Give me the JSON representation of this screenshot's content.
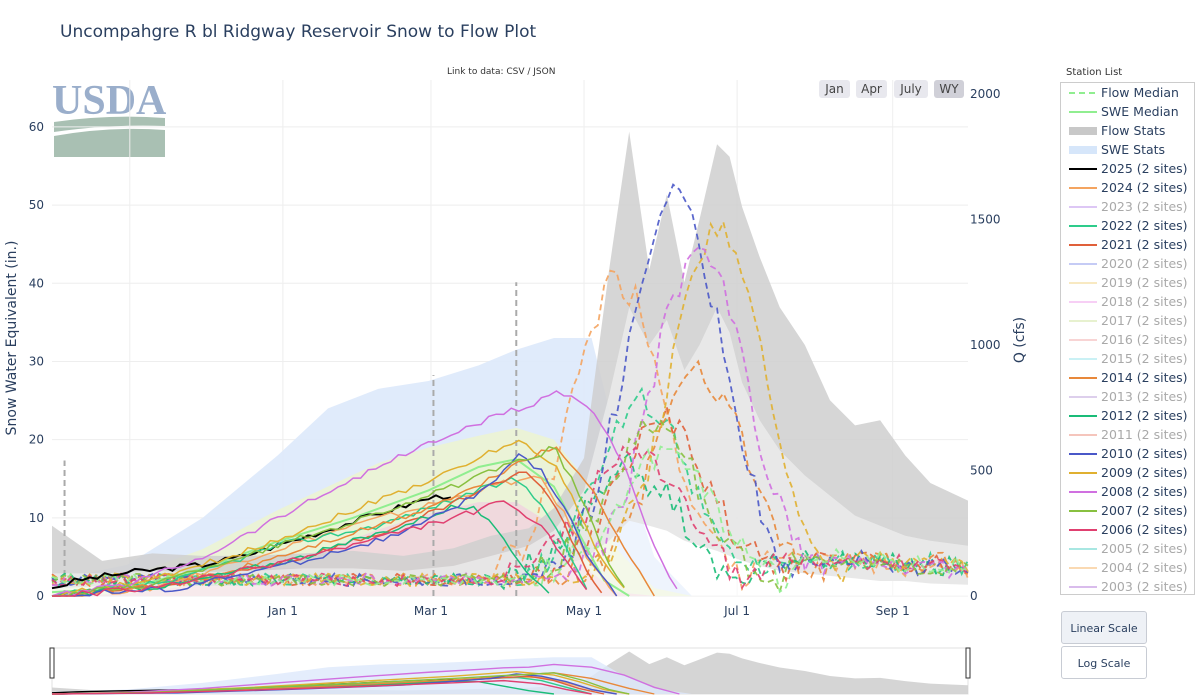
{
  "page": {
    "title": "Uncompahgre R bl Ridgway Reservoir Snow to Flow Plot"
  },
  "links": {
    "data_link": "Link to data: CSV / JSON"
  },
  "range_buttons": [
    {
      "label": "Jan",
      "active": false
    },
    {
      "label": "Apr",
      "active": false
    },
    {
      "label": "July",
      "active": false
    },
    {
      "label": "WY",
      "active": true
    }
  ],
  "logo": {
    "text": "USDA",
    "color": "#9aaecb",
    "field_color": "#a9c0b3"
  },
  "station_list_label": "Station List",
  "scale_buttons": [
    {
      "label": "Linear Scale",
      "active": true
    },
    {
      "label": "Log Scale",
      "active": false
    }
  ],
  "legend": [
    {
      "label": "Flow Median",
      "style": "dash",
      "color": "#90ee90",
      "visible": true
    },
    {
      "label": "SWE Median",
      "style": "line",
      "color": "#90ee90",
      "visible": true
    },
    {
      "label": "Flow Stats",
      "style": "band",
      "color": "#c8c8c8",
      "visible": true
    },
    {
      "label": "SWE Stats",
      "style": "band",
      "color": "#d6e6fa",
      "visible": true
    },
    {
      "label": "2025 (2 sites)",
      "style": "line",
      "color": "#000000",
      "visible": true
    },
    {
      "label": "2024 (2 sites)",
      "style": "line",
      "color": "#f4a460",
      "visible": true
    },
    {
      "label": "2023 (2 sites)",
      "style": "line",
      "color": "#c8a2f0",
      "visible": false
    },
    {
      "label": "2022 (2 sites)",
      "style": "line",
      "color": "#2ecc8b",
      "visible": true
    },
    {
      "label": "2021 (2 sites)",
      "style": "line",
      "color": "#e0603a",
      "visible": true
    },
    {
      "label": "2020 (2 sites)",
      "style": "line",
      "color": "#a0aaf0",
      "visible": false
    },
    {
      "label": "2019 (2 sites)",
      "style": "line",
      "color": "#f5dc9a",
      "visible": false
    },
    {
      "label": "2018 (2 sites)",
      "style": "line",
      "color": "#f3b0f0",
      "visible": false
    },
    {
      "label": "2017 (2 sites)",
      "style": "line",
      "color": "#d8e8b0",
      "visible": false
    },
    {
      "label": "2016 (2 sites)",
      "style": "line",
      "color": "#f4b8b8",
      "visible": false
    },
    {
      "label": "2015 (2 sites)",
      "style": "line",
      "color": "#a8e8f0",
      "visible": false
    },
    {
      "label": "2014 (2 sites)",
      "style": "line",
      "color": "#e8883a",
      "visible": true
    },
    {
      "label": "2013 (2 sites)",
      "style": "line",
      "color": "#c8b0e0",
      "visible": false
    },
    {
      "label": "2012 (2 sites)",
      "style": "line",
      "color": "#1abc78",
      "visible": true
    },
    {
      "label": "2011 (2 sites)",
      "style": "line",
      "color": "#f0a090",
      "visible": false
    },
    {
      "label": "2010 (2 sites)",
      "style": "line",
      "color": "#4a58c8",
      "visible": true
    },
    {
      "label": "2009 (2 sites)",
      "style": "line",
      "color": "#e0b030",
      "visible": true
    },
    {
      "label": "2008 (2 sites)",
      "style": "line",
      "color": "#d070e0",
      "visible": true
    },
    {
      "label": "2007 (2 sites)",
      "style": "line",
      "color": "#88c040",
      "visible": true
    },
    {
      "label": "2006 (2 sites)",
      "style": "line",
      "color": "#e04070",
      "visible": true
    },
    {
      "label": "2005 (2 sites)",
      "style": "line",
      "color": "#70d8d0",
      "visible": false
    },
    {
      "label": "2004 (2 sites)",
      "style": "line",
      "color": "#f8c080",
      "visible": false
    },
    {
      "label": "2003 (2 sites)",
      "style": "line",
      "color": "#c090e0",
      "visible": false
    }
  ],
  "chart_data": {
    "type": "line",
    "title": "Uncompahgre R bl Ridgway Reservoir Snow to Flow Plot",
    "xlabel": "",
    "ylabel": "Snow Water Equivalent (in.)",
    "y2label": "Q (cfs)",
    "x_ticks": [
      "Nov 1",
      "Jan 1",
      "Mar 1",
      "May 1",
      "Jul 1",
      "Sep 1"
    ],
    "x_tick_days": [
      31,
      92,
      151,
      212,
      273,
      335
    ],
    "x_range_days": [
      0,
      365
    ],
    "y_ticks": [
      0,
      10,
      20,
      30,
      40,
      50,
      60
    ],
    "ylim": [
      0,
      66
    ],
    "y2_ticks": [
      0,
      500,
      1000,
      1500,
      2000
    ],
    "y2lim": [
      0,
      2000
    ],
    "grid": true,
    "legend_position": "right",
    "swe_stats": {
      "days": [
        0,
        30,
        60,
        90,
        110,
        130,
        150,
        170,
        185,
        200,
        215,
        225,
        240,
        255
      ],
      "max": [
        2,
        4,
        10,
        18,
        24,
        26.5,
        27.5,
        29.5,
        31.5,
        33,
        33,
        20,
        5,
        0
      ],
      "upper": [
        1,
        2.5,
        6,
        11,
        14,
        17,
        19,
        20.5,
        21.5,
        20,
        14,
        6,
        1,
        0
      ],
      "lower": [
        0,
        0.3,
        1.5,
        4,
        6,
        8.5,
        10.5,
        12,
        12,
        9,
        3,
        0.5,
        0,
        0
      ]
    },
    "flow_stats": {
      "days": [
        0,
        20,
        40,
        60,
        80,
        100,
        120,
        140,
        160,
        175,
        190,
        200,
        212,
        222,
        230,
        238,
        245,
        252,
        258,
        265,
        270,
        275,
        282,
        290,
        300,
        310,
        320,
        330,
        340,
        350,
        365
      ],
      "max": [
        280,
        140,
        170,
        160,
        160,
        170,
        180,
        160,
        190,
        240,
        270,
        350,
        550,
        1300,
        1850,
        1300,
        1600,
        1250,
        1500,
        1800,
        1750,
        1550,
        1350,
        1150,
        1000,
        780,
        680,
        700,
        560,
        450,
        380
      ],
      "upper": [
        90,
        90,
        100,
        95,
        100,
        110,
        110,
        100,
        120,
        160,
        200,
        260,
        420,
        800,
        1150,
        1000,
        1100,
        900,
        1000,
        1150,
        1050,
        850,
        700,
        580,
        480,
        400,
        320,
        280,
        240,
        220,
        200
      ],
      "lower": [
        30,
        40,
        40,
        40,
        40,
        45,
        45,
        45,
        50,
        60,
        80,
        110,
        150,
        220,
        300,
        280,
        260,
        220,
        200,
        180,
        160,
        140,
        120,
        100,
        90,
        80,
        70,
        60,
        60,
        50,
        45
      ]
    },
    "swe_median": {
      "days": [
        0,
        30,
        60,
        90,
        120,
        150,
        170,
        185,
        200,
        210,
        220,
        230
      ],
      "values": [
        0.5,
        1,
        3.5,
        7,
        10,
        13.5,
        16.5,
        17.5,
        14,
        8,
        2,
        0
      ]
    },
    "swe_series": [
      {
        "name": "2025 (2 sites)",
        "color": "#000000",
        "width": 2,
        "days": [
          0,
          10,
          20,
          30,
          45,
          60,
          75,
          90,
          105,
          120,
          135,
          150,
          160
        ],
        "values": [
          1,
          2,
          2.5,
          3,
          3.5,
          4,
          5,
          6.5,
          8,
          9.5,
          11,
          12.5,
          13
        ]
      },
      {
        "name": "2024 (2 sites)",
        "color": "#f4a460",
        "width": 1.5,
        "days": [
          0,
          40,
          80,
          120,
          160,
          180,
          195,
          205,
          215,
          225
        ],
        "values": [
          0,
          1,
          5,
          9,
          12.5,
          14.5,
          15,
          10,
          4,
          0
        ]
      },
      {
        "name": "2022 (2 sites)",
        "color": "#2ecc8b",
        "width": 1.5,
        "days": [
          0,
          50,
          90,
          130,
          170,
          185,
          195,
          205,
          215
        ],
        "values": [
          0,
          2,
          6.5,
          9,
          13.5,
          15,
          12,
          6,
          0
        ]
      },
      {
        "name": "2021 (2 sites)",
        "color": "#e0603a",
        "width": 1.5,
        "days": [
          0,
          50,
          100,
          140,
          175,
          190,
          200,
          210,
          220
        ],
        "values": [
          0,
          1.5,
          5,
          9,
          14,
          16,
          12,
          5,
          0
        ]
      },
      {
        "name": "2014 (2 sites)",
        "color": "#e8883a",
        "width": 1.5,
        "days": [
          0,
          60,
          100,
          140,
          170,
          185,
          200,
          215,
          230,
          240
        ],
        "values": [
          0,
          2,
          6,
          10,
          14,
          17,
          19,
          14,
          5,
          0
        ]
      },
      {
        "name": "2012 (2 sites)",
        "color": "#1abc78",
        "width": 1.5,
        "days": [
          0,
          50,
          100,
          140,
          160,
          170,
          180,
          190,
          200
        ],
        "values": [
          0,
          1.5,
          5,
          9,
          11.5,
          11,
          7,
          3,
          0
        ]
      },
      {
        "name": "2010 (2 sites)",
        "color": "#4a58c8",
        "width": 1.5,
        "days": [
          0,
          50,
          100,
          140,
          175,
          185,
          195,
          205,
          215,
          225
        ],
        "values": [
          0,
          1,
          4.5,
          8,
          14,
          18,
          16,
          11,
          4,
          0
        ]
      },
      {
        "name": "2009 (2 sites)",
        "color": "#e0b030",
        "width": 1.5,
        "days": [
          0,
          40,
          80,
          120,
          160,
          185,
          200,
          210,
          220,
          230
        ],
        "values": [
          0,
          2,
          6,
          11,
          16,
          20,
          17,
          11,
          4,
          0
        ]
      },
      {
        "name": "2008 (2 sites)",
        "color": "#d070e0",
        "width": 1.5,
        "days": [
          0,
          30,
          60,
          90,
          120,
          150,
          170,
          180,
          190,
          200,
          215,
          228,
          240,
          250
        ],
        "values": [
          0,
          1.5,
          5,
          10,
          15,
          19.5,
          22,
          23.5,
          24,
          26.5,
          24,
          17,
          6,
          0
        ]
      },
      {
        "name": "2007 (2 sites)",
        "color": "#88c040",
        "width": 1.5,
        "days": [
          0,
          40,
          80,
          120,
          160,
          180,
          190,
          200,
          212,
          222,
          230
        ],
        "values": [
          0,
          1.5,
          5.5,
          9.5,
          14,
          16.5,
          17.5,
          19,
          12,
          4,
          0
        ]
      },
      {
        "name": "2006 (2 sites)",
        "color": "#e04070",
        "width": 1.5,
        "days": [
          0,
          40,
          80,
          120,
          160,
          180,
          195,
          205,
          215
        ],
        "values": [
          0,
          1,
          3.5,
          6.5,
          10,
          12,
          9,
          4,
          0
        ]
      }
    ],
    "flow_series": [
      {
        "name": "2024 (2 sites)",
        "color": "#f4a460",
        "peak_day": 226,
        "peak_cfs": 1200
      },
      {
        "name": "2022 (2 sites)",
        "color": "#2ecc8b",
        "peak_day": 235,
        "peak_cfs": 700
      },
      {
        "name": "2021 (2 sites)",
        "color": "#e0603a",
        "peak_day": 243,
        "peak_cfs": 640
      },
      {
        "name": "2014 (2 sites)",
        "color": "#e8883a",
        "peak_day": 258,
        "peak_cfs": 820
      },
      {
        "name": "2012 (2 sites)",
        "color": "#1abc78",
        "peak_day": 230,
        "peak_cfs": 450
      },
      {
        "name": "2010 (2 sites)",
        "color": "#4a58c8",
        "peak_day": 248,
        "peak_cfs": 1530
      },
      {
        "name": "2009 (2 sites)",
        "color": "#e0b030",
        "peak_day": 265,
        "peak_cfs": 1400
      },
      {
        "name": "2008 (2 sites)",
        "color": "#d070e0",
        "peak_day": 258,
        "peak_cfs": 1330
      },
      {
        "name": "2007 (2 sites)",
        "color": "#88c040",
        "peak_day": 240,
        "peak_cfs": 600
      },
      {
        "name": "2006 (2 sites)",
        "color": "#e04070",
        "peak_day": 233,
        "peak_cfs": 520
      },
      {
        "name": "Flow Median",
        "color": "#90ee90",
        "peak_day": 245,
        "peak_cfs": 520
      }
    ],
    "flow_spikes": [
      {
        "day": 5,
        "cfs": 540
      },
      {
        "day": 152,
        "cfs": 880
      },
      {
        "day": 185,
        "cfs": 1250
      }
    ]
  }
}
